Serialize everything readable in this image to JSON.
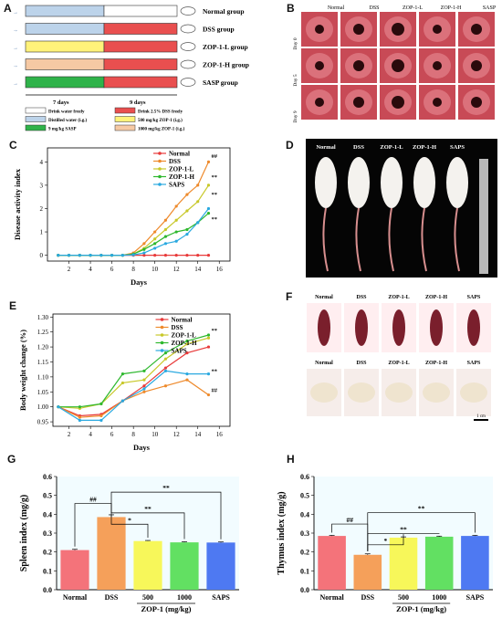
{
  "panels": {
    "a": "A",
    "b": "B",
    "c": "C",
    "d": "D",
    "e": "E",
    "f": "F",
    "g": "G",
    "h": "H"
  },
  "colors": {
    "white": "#ffffff",
    "blue": "#bcd3ea",
    "red": "#e94f4f",
    "yellow": "#fff27a",
    "orange": "#f6c9a4",
    "green": "#2fb34a",
    "normal": "#e83a3a",
    "dss": "#ee8a2c",
    "zopl": "#c8c82a",
    "zoph": "#2eb82e",
    "saps": "#2aa9e0"
  },
  "schematic": {
    "groups": [
      "Normal group",
      "DSS group",
      "ZOP-1-L group",
      "ZOP-1-H group",
      "SASP group"
    ],
    "phase1": "7 days",
    "phase2": "9 days",
    "legend": [
      "Drink water freely",
      "Drink 2.5% DSS freely",
      "Distilled water (i.g.)",
      "500 mg/kg ZOP-1 (i.g.)",
      "9 mg/kg SASP",
      "1000 mg/kg ZOP-1 (i.g.)"
    ]
  },
  "endoscopy": {
    "cols": [
      "Normal",
      "DSS",
      "ZOP-1-L",
      "ZOP-1-H",
      "SASP"
    ],
    "rows": [
      "Day 0",
      "Day 5",
      "Day 9"
    ]
  },
  "mice_photo": {
    "labels": [
      "Normal",
      "DSS",
      "ZOP-1-L",
      "ZOP-1-H",
      "SAPS"
    ]
  },
  "organ_photo": {
    "labels": [
      "Normal",
      "DSS",
      "ZOP-1-L",
      "ZOP-1-H",
      "SAPS"
    ],
    "scale": "1 cm"
  },
  "chart_data": [
    {
      "panel": "C",
      "type": "line",
      "xlabel": "Days",
      "ylabel": "Disease activity index",
      "xlim": [
        0,
        17
      ],
      "ylim": [
        -0.25,
        4.6
      ],
      "xticks": [
        2,
        4,
        6,
        8,
        10,
        12,
        14,
        16
      ],
      "yticks": [
        0,
        1,
        2,
        3,
        4
      ],
      "x": [
        1,
        2,
        3,
        4,
        5,
        6,
        7,
        8,
        9,
        10,
        11,
        12,
        13,
        14,
        15
      ],
      "series": [
        {
          "name": "Normal",
          "color": "#e83a3a",
          "values": [
            0,
            0,
            0,
            0,
            0,
            0,
            0,
            0,
            0,
            0,
            0,
            0,
            0,
            0,
            0
          ]
        },
        {
          "name": "DSS",
          "color": "#ee8a2c",
          "values": [
            0,
            0,
            0,
            0,
            0,
            0,
            0,
            0.1,
            0.5,
            1.0,
            1.5,
            2.1,
            2.6,
            3.0,
            4.0
          ]
        },
        {
          "name": "ZOP-1-L",
          "color": "#c8c82a",
          "values": [
            0,
            0,
            0,
            0,
            0,
            0,
            0,
            0.05,
            0.3,
            0.7,
            1.1,
            1.5,
            1.9,
            2.3,
            3.0
          ]
        },
        {
          "name": "ZOP-1-H",
          "color": "#2eb82e",
          "values": [
            0,
            0,
            0,
            0,
            0,
            0,
            0,
            0.05,
            0.25,
            0.5,
            0.8,
            1.0,
            1.1,
            1.4,
            1.8
          ]
        },
        {
          "name": "SAPS",
          "color": "#2aa9e0",
          "values": [
            0,
            0,
            0,
            0,
            0,
            0,
            0,
            0.02,
            0.1,
            0.3,
            0.5,
            0.6,
            0.9,
            1.4,
            2.0
          ]
        }
      ],
      "annotations": [
        {
          "text": "##",
          "x": 15,
          "y": 4.25
        },
        {
          "text": "**",
          "x": 15,
          "y": 3.35
        },
        {
          "text": "**",
          "x": 15,
          "y": 2.6
        },
        {
          "text": "**",
          "x": 15,
          "y": 1.55
        }
      ],
      "legend": "top-left"
    },
    {
      "panel": "E",
      "type": "line",
      "xlabel": "Days",
      "ylabel": "Body weight change (%)",
      "xlim": [
        0.5,
        17
      ],
      "ylim": [
        0.935,
        1.31
      ],
      "xticks": [
        2,
        4,
        6,
        8,
        10,
        12,
        14,
        16
      ],
      "yticks": [
        "0.95",
        "1.00",
        "1.05",
        "1.10",
        "1.15",
        "1.20",
        "1.25",
        "1.30"
      ],
      "x": [
        1,
        3,
        5,
        7,
        9,
        11,
        13,
        15
      ],
      "series": [
        {
          "name": "Normal",
          "color": "#e83a3a",
          "values": [
            1.0,
            0.97,
            0.975,
            1.02,
            1.07,
            1.13,
            1.18,
            1.2
          ]
        },
        {
          "name": "DSS",
          "color": "#ee8a2c",
          "values": [
            1.0,
            0.965,
            0.97,
            1.02,
            1.05,
            1.07,
            1.09,
            1.04
          ]
        },
        {
          "name": "ZOP-1-L",
          "color": "#c8c82a",
          "values": [
            1.0,
            0.995,
            1.01,
            1.08,
            1.09,
            1.16,
            1.21,
            1.23
          ]
        },
        {
          "name": "ZOP-1-H",
          "color": "#2eb82e",
          "values": [
            1.0,
            1.0,
            1.01,
            1.11,
            1.12,
            1.18,
            1.22,
            1.24
          ]
        },
        {
          "name": "SAPS",
          "color": "#2aa9e0",
          "values": [
            1.0,
            0.955,
            0.955,
            1.02,
            1.06,
            1.12,
            1.11,
            1.11
          ]
        }
      ],
      "annotations": [
        {
          "text": "**",
          "x": 15,
          "y": 1.255
        },
        {
          "text": "**",
          "x": 15,
          "y": 1.12
        },
        {
          "text": "##",
          "x": 15,
          "y": 1.055
        }
      ],
      "legend": "top-left"
    },
    {
      "panel": "G",
      "type": "bar",
      "xlabel": "ZOP-1 (mg/kg)",
      "ylabel": "Spleen index (mg/g)",
      "categories": [
        "Normal",
        "DSS",
        "500",
        "1000",
        "SAPS"
      ],
      "values": [
        0.21,
        0.385,
        0.258,
        0.251,
        0.25
      ],
      "errors": [
        0.004,
        0.012,
        0.003,
        0.003,
        0.003
      ],
      "colors": [
        "#f4737a",
        "#f5a05a",
        "#f7f75a",
        "#62e062",
        "#4e79f2"
      ],
      "ylim": [
        0,
        0.6
      ],
      "yticks": [
        "0.0",
        "0.1",
        "0.2",
        "0.3",
        "0.4",
        "0.5",
        "0.6"
      ],
      "comparisons": [
        {
          "from": 0,
          "to": 1,
          "label": "##"
        },
        {
          "from": 1,
          "to": 2,
          "label": "*"
        },
        {
          "from": 1,
          "to": 3,
          "label": "**"
        },
        {
          "from": 1,
          "to": 4,
          "label": "**"
        }
      ]
    },
    {
      "panel": "H",
      "type": "bar",
      "xlabel": "ZOP-1 (mg/kg)",
      "ylabel": "Thymus index (mg/g)",
      "categories": [
        "Normal",
        "DSS",
        "500",
        "1000",
        "SAPS"
      ],
      "values": [
        0.285,
        0.185,
        0.276,
        0.281,
        0.285
      ],
      "errors": [
        0.003,
        0.005,
        0.004,
        0.003,
        0.003
      ],
      "colors": [
        "#f4737a",
        "#f5a05a",
        "#f7f75a",
        "#62e062",
        "#4e79f2"
      ],
      "ylim": [
        0,
        0.6
      ],
      "yticks": [
        "0.0",
        "0.1",
        "0.2",
        "0.3",
        "0.4",
        "0.5",
        "0.6"
      ],
      "comparisons": [
        {
          "from": 0,
          "to": 1,
          "label": "##"
        },
        {
          "from": 1,
          "to": 2,
          "label": "*"
        },
        {
          "from": 1,
          "to": 3,
          "label": "**"
        },
        {
          "from": 1,
          "to": 4,
          "label": "**"
        }
      ]
    }
  ]
}
